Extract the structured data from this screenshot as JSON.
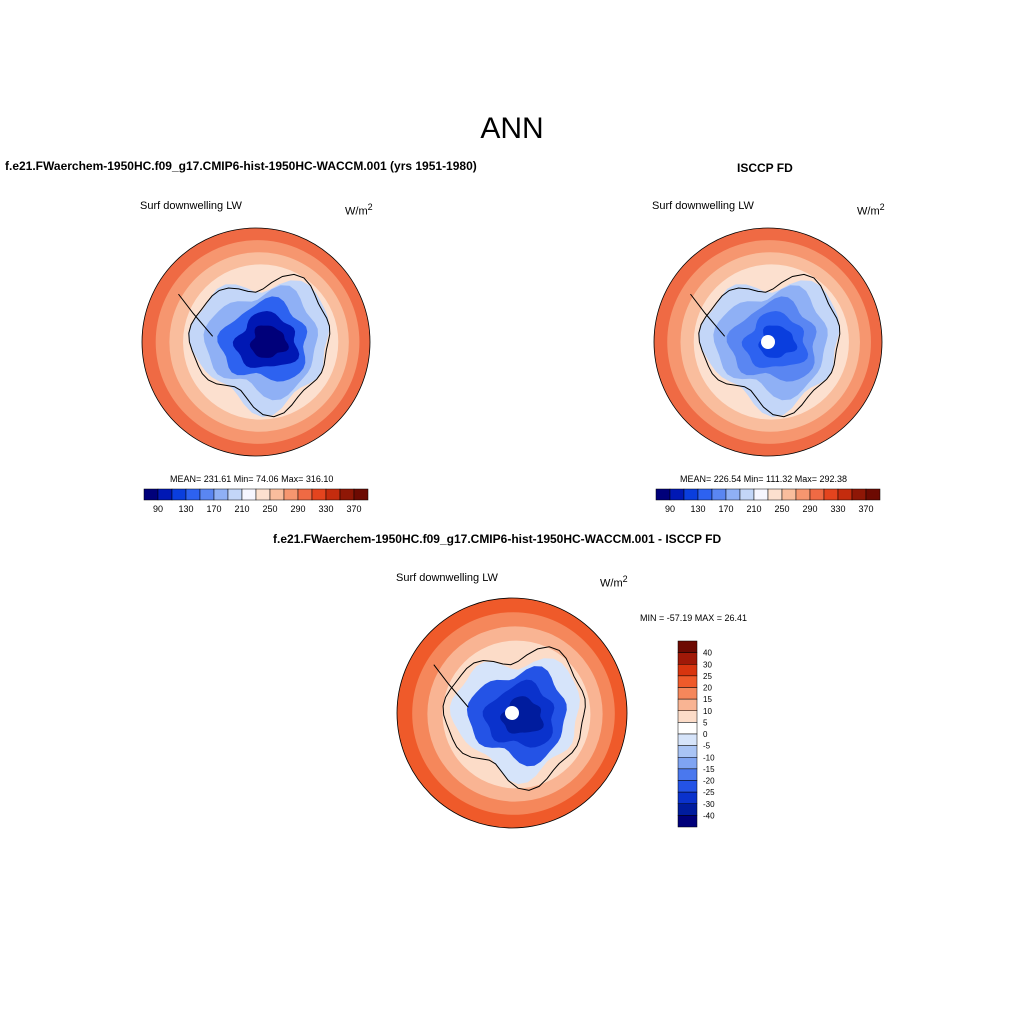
{
  "figure_title": "ANN",
  "panels": {
    "model": {
      "title": "f.e21.FWaerchem-1950HC.f09_g17.CMIP6-hist-1950HC-WACCM.001 (yrs 1951-1980)",
      "variable": "Surf downwelling LW",
      "units_base": "W/m",
      "units_exp": "2",
      "stats": "MEAN= 231.61  Min=  74.06  Max= 316.10"
    },
    "obs": {
      "title": "ISCCP FD",
      "variable": "Surf downwelling LW",
      "units_base": "W/m",
      "units_exp": "2",
      "stats": "MEAN= 226.54  Min= 111.32  Max= 292.38"
    },
    "diff": {
      "title": "f.e21.FWaerchem-1950HC.f09_g17.CMIP6-hist-1950HC-WACCM.001 - ISCCP FD",
      "variable": "Surf downwelling LW",
      "units_base": "W/m",
      "units_exp": "2",
      "stats": "MIN = -57.19 MAX =  26.41"
    }
  },
  "colorbars": {
    "abs_labels": [
      "90",
      "130",
      "170",
      "210",
      "250",
      "290",
      "330",
      "370"
    ],
    "abs_colors": [
      "#00007a",
      "#0018b4",
      "#0a3ede",
      "#2d62f0",
      "#5a86f2",
      "#8fb0f5",
      "#c3d6f8",
      "#f6f6ff",
      "#fce0cf",
      "#f9bd9d",
      "#f6966f",
      "#ef6a44",
      "#e4441e",
      "#c42c0e",
      "#8f1706",
      "#6d0a02"
    ],
    "diff_labels": [
      "40",
      "30",
      "25",
      "20",
      "15",
      "10",
      "5",
      "0",
      "-5",
      "-10",
      "-15",
      "-20",
      "-25",
      "-30",
      "-40"
    ],
    "diff_colors": [
      "#6d0a02",
      "#a01908",
      "#d8350f",
      "#ef5a2a",
      "#f5875b",
      "#f9b493",
      "#fcdcc8",
      "#ffffff",
      "#d6e4fa",
      "#a9c4f5",
      "#7fa4f2",
      "#4a78ee",
      "#2453e6",
      "#0a32cc",
      "#001c9e",
      "#00007a"
    ]
  },
  "maps": {
    "region": "Antarctica (South polar stereographic)",
    "model_rings": [
      "#ef6a44",
      "#f6966f",
      "#f9bd9d",
      "#fce0cf",
      "#c3d6f8",
      "#8fb0f5",
      "#2d62f0",
      "#0018b4",
      "#00007a"
    ],
    "obs_rings": [
      "#ef6a44",
      "#f6966f",
      "#f9bd9d",
      "#fce0cf",
      "#c3d6f8",
      "#8fb0f5",
      "#5a86f2",
      "#2d62f0",
      "#0a3ede"
    ],
    "diff_rings": [
      "#ef5a2a",
      "#f5875b",
      "#f9b493",
      "#fcdcc8",
      "#d6e4fa",
      "#2453e6",
      "#0a32cc",
      "#001c9e"
    ]
  }
}
